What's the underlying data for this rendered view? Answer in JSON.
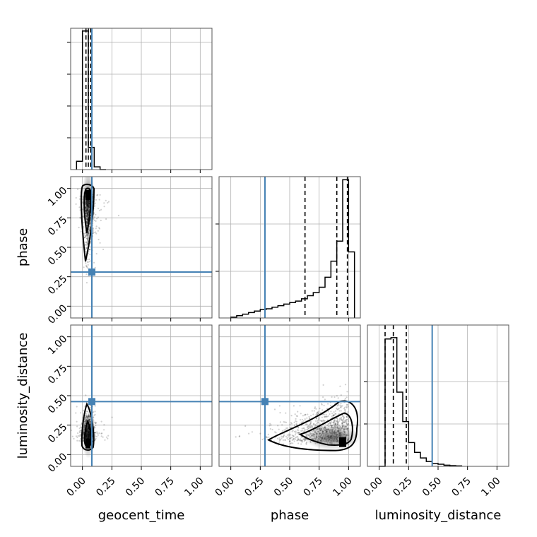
{
  "chart_data": {
    "type": "corner",
    "parameters": [
      "geocent_time",
      "phase",
      "luminosity_distance"
    ],
    "truths": {
      "geocent_time": 0.08,
      "phase": 0.29,
      "luminosity_distance": 0.45
    },
    "truth_color": "#4682b4",
    "diagonal": [
      {
        "parameter": "geocent_time",
        "xlim": [
          -0.1,
          1.1
        ],
        "ylim": [
          0,
          1.02
        ],
        "bin_edges": [
          -0.05,
          0.0,
          0.05,
          0.1,
          0.15,
          0.2
        ],
        "counts": [
          0.06,
          1.0,
          0.16,
          0.02,
          0.0
        ],
        "quantile_lines": [
          0.03,
          0.05,
          0.07
        ]
      },
      {
        "parameter": "phase",
        "xlim": [
          -0.1,
          1.1
        ],
        "ylim": [
          0,
          0.92
        ],
        "bin_edges": [
          0.0,
          0.05,
          0.1,
          0.15,
          0.2,
          0.25,
          0.3,
          0.35,
          0.4,
          0.45,
          0.5,
          0.55,
          0.6,
          0.65,
          0.7,
          0.75,
          0.8,
          0.85,
          0.9,
          0.95,
          1.0,
          1.05
        ],
        "counts": [
          0.005,
          0.015,
          0.025,
          0.035,
          0.045,
          0.055,
          0.06,
          0.07,
          0.08,
          0.09,
          0.1,
          0.11,
          0.125,
          0.145,
          0.165,
          0.2,
          0.265,
          0.37,
          0.5,
          0.9,
          0.43
        ],
        "quantile_lines": [
          0.63,
          0.9,
          0.99
        ]
      },
      {
        "parameter": "luminosity_distance",
        "xlim": [
          -0.1,
          1.1
        ],
        "ylim": [
          0,
          1.01
        ],
        "bin_edges": [
          0.0,
          0.05,
          0.1,
          0.15,
          0.2,
          0.25,
          0.3,
          0.35,
          0.4,
          0.45,
          0.5,
          0.55,
          0.6,
          0.65,
          0.7
        ],
        "counts": [
          0.0,
          0.91,
          0.92,
          0.53,
          0.32,
          0.17,
          0.1,
          0.06,
          0.035,
          0.02,
          0.015,
          0.008,
          0.005,
          0.003
        ],
        "quantile_lines": [
          0.05,
          0.12,
          0.23
        ]
      }
    ],
    "off_diagonal": [
      {
        "x": "geocent_time",
        "y": "phase",
        "xlim": [
          -0.1,
          1.1
        ],
        "ylim": [
          -0.1,
          1.1
        ],
        "density_peak": [
          0.05,
          0.95
        ],
        "contour_levels": 2
      },
      {
        "x": "geocent_time",
        "y": "luminosity_distance",
        "xlim": [
          -0.1,
          1.1
        ],
        "ylim": [
          -0.1,
          1.1
        ],
        "density_peak": [
          0.05,
          0.1
        ],
        "contour_levels": 2
      },
      {
        "x": "phase",
        "y": "luminosity_distance",
        "xlim": [
          -0.1,
          1.1
        ],
        "ylim": [
          -0.1,
          1.1
        ],
        "density_peak": [
          0.95,
          0.1
        ],
        "contour_levels": 2
      }
    ],
    "xticks": [
      "0.00",
      "0.25",
      "0.50",
      "0.75",
      "1.00"
    ],
    "yticks": [
      "0.00",
      "0.25",
      "0.50",
      "0.75",
      "1.00"
    ],
    "tick_values": [
      0.0,
      0.25,
      0.5,
      0.75,
      1.0
    ],
    "xlabels": [
      "geocent_time",
      "phase",
      "luminosity_distance"
    ],
    "ylabels": [
      "phase",
      "luminosity_distance"
    ],
    "grid": true
  }
}
